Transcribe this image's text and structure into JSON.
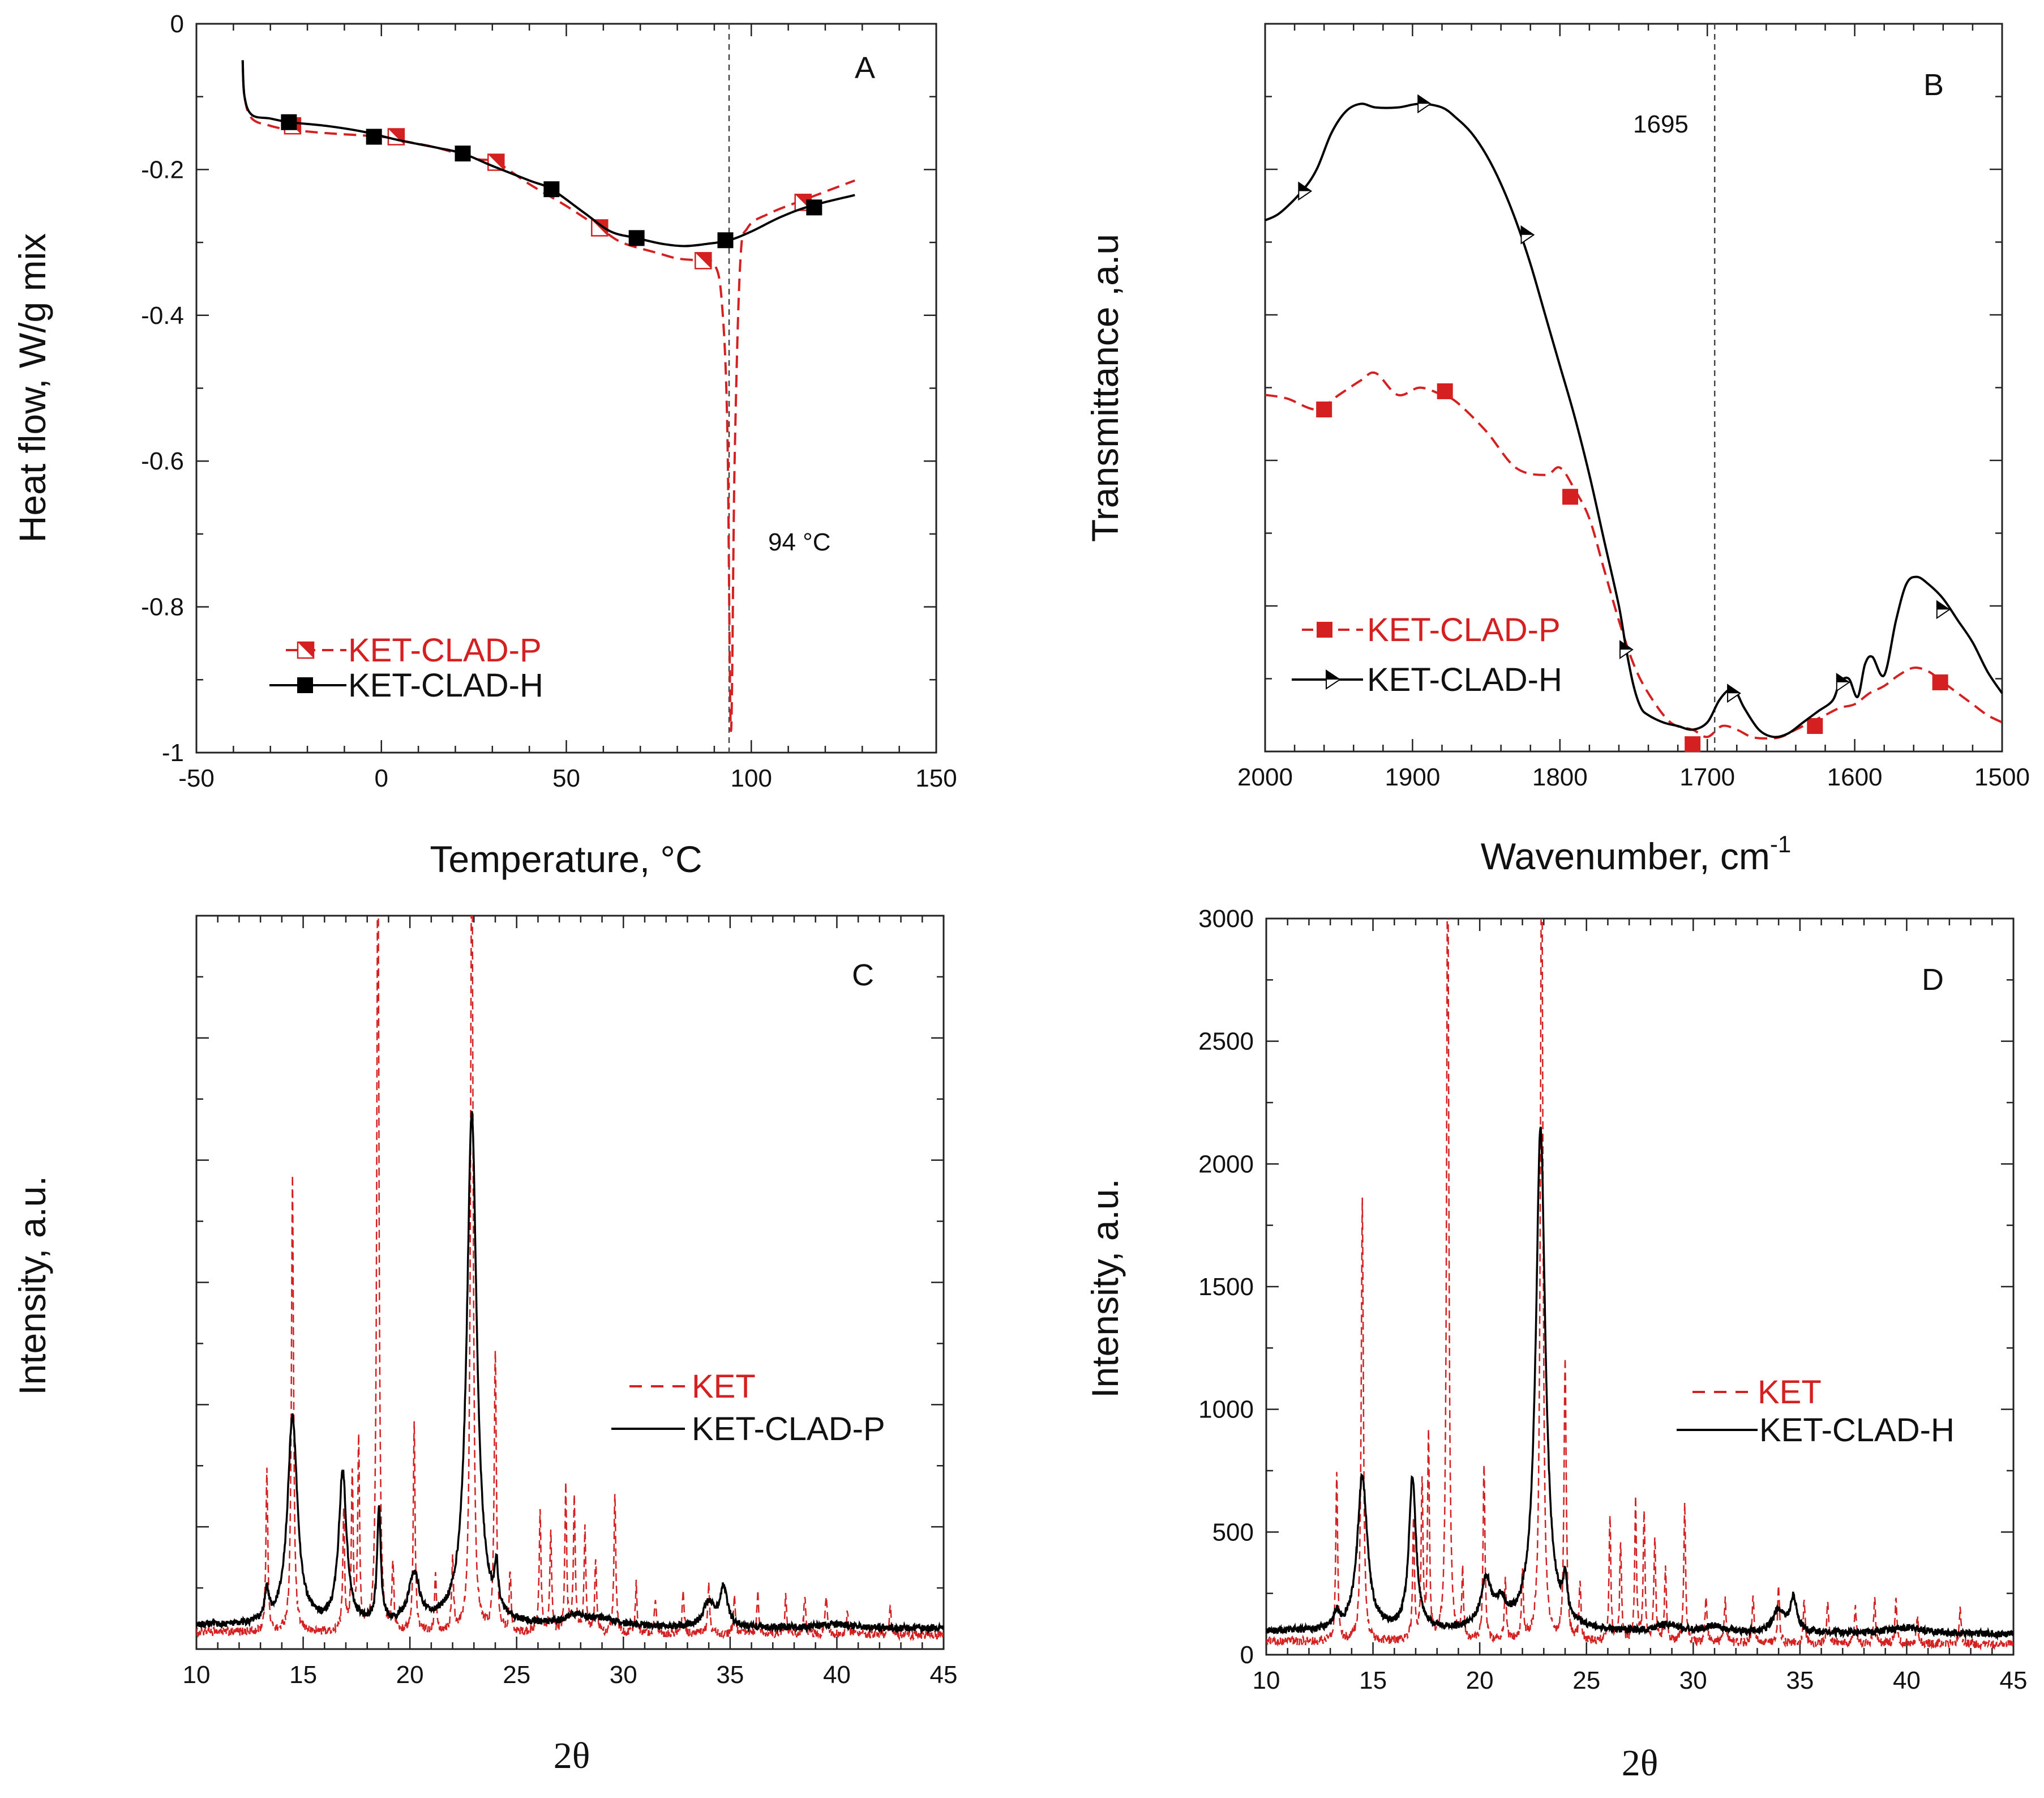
{
  "colors": {
    "red": "#d42020",
    "black": "#000000"
  },
  "chart_data": [
    {
      "panel": "A",
      "type": "line",
      "title": "",
      "xlabel": "Temperature, °C",
      "ylabel": "Heat flow,  W/g mix",
      "xlim": [
        -50,
        150
      ],
      "ylim": [
        -1,
        0
      ],
      "xticks": [
        -50,
        0,
        50,
        100,
        150
      ],
      "yticks": [
        -1,
        -0.8,
        -0.6,
        -0.4,
        -0.2,
        0
      ],
      "xtick_labels": [
        "-50",
        "0",
        "50",
        "100",
        "150"
      ],
      "ytick_labels": [
        "-1",
        "-0.8",
        "-0.6",
        "-0.4",
        "-0.2",
        "0"
      ],
      "vline": 94,
      "annotation": "94 °C",
      "series": [
        {
          "name": "KET-CLAD-P",
          "color": "red",
          "dash": true,
          "marker": "halftri",
          "x": [
            -37.5,
            -37,
            -35,
            -30,
            -25,
            -15,
            0,
            5,
            15,
            25,
            31,
            40,
            50,
            59,
            65,
            75,
            80,
            86,
            90,
            92,
            93.5,
            94.5,
            95.5,
            97,
            99,
            105,
            115,
            128
          ],
          "y": [
            -0.05,
            -0.1,
            -0.13,
            -0.14,
            -0.145,
            -0.15,
            -0.155,
            -0.16,
            -0.17,
            -0.185,
            -0.19,
            -0.22,
            -0.25,
            -0.28,
            -0.3,
            -0.315,
            -0.322,
            -0.325,
            -0.33,
            -0.38,
            -0.55,
            -0.97,
            -0.6,
            -0.33,
            -0.28,
            -0.26,
            -0.24,
            -0.215
          ],
          "markers_x": [
            -24,
            4,
            31,
            59,
            87,
            114
          ],
          "markers_y": [
            -0.14,
            -0.155,
            -0.19,
            -0.28,
            -0.325,
            -0.245
          ]
        },
        {
          "name": "KET-CLAD-H",
          "color": "black",
          "dash": false,
          "marker": "square",
          "x": [
            -37.5,
            -37,
            -35,
            -30,
            -25,
            -15,
            -5,
            5,
            15,
            22,
            30,
            40,
            46,
            55,
            62,
            69,
            76,
            82,
            88,
            94,
            100,
            108,
            116,
            128
          ],
          "y": [
            -0.05,
            -0.1,
            -0.125,
            -0.13,
            -0.135,
            -0.14,
            -0.148,
            -0.16,
            -0.17,
            -0.178,
            -0.195,
            -0.215,
            -0.227,
            -0.26,
            -0.285,
            -0.294,
            -0.302,
            -0.305,
            -0.302,
            -0.297,
            -0.285,
            -0.265,
            -0.25,
            -0.235
          ],
          "markers_x": [
            -25,
            -2,
            22,
            46,
            69,
            93,
            117
          ],
          "markers_y": [
            -0.135,
            -0.155,
            -0.178,
            -0.227,
            -0.294,
            -0.297,
            -0.252
          ]
        }
      ]
    },
    {
      "panel": "B",
      "type": "line",
      "title": "",
      "xlabel": "Wavenumber, cm",
      "xlabel_sup": "-1",
      "ylabel": "Transmittance ,a.u",
      "xlim": [
        2000,
        1500
      ],
      "ylim": [
        0,
        100
      ],
      "xticks": [
        2000,
        1900,
        1800,
        1700,
        1600,
        1500
      ],
      "xtick_labels": [
        "2000",
        "1900",
        "1800",
        "1700",
        "1600",
        "1500"
      ],
      "yticks_unlabeled": true,
      "vline": 1695,
      "annotation": "1695",
      "series": [
        {
          "name": "KET-CLAD-P",
          "color": "red",
          "dash": true,
          "marker": "square",
          "x": [
            2000,
            1985,
            1965,
            1950,
            1935,
            1925,
            1910,
            1895,
            1880,
            1870,
            1850,
            1830,
            1810,
            1800,
            1790,
            1780,
            1770,
            1760,
            1750,
            1740,
            1725,
            1710,
            1700,
            1690,
            1680,
            1670,
            1660,
            1650,
            1640,
            1630,
            1620,
            1610,
            1600,
            1590,
            1580,
            1570,
            1560,
            1550,
            1540,
            1530,
            1520,
            1510,
            1500
          ],
          "y": [
            49,
            48.5,
            47,
            49,
            51,
            52,
            49,
            50,
            49,
            48,
            44,
            39,
            38,
            39,
            36,
            32,
            25,
            18,
            12,
            8,
            4,
            3,
            2,
            3.5,
            3,
            2,
            1.8,
            2,
            3,
            4,
            5,
            6,
            6.5,
            8,
            9,
            10.5,
            11.5,
            11,
            9.5,
            8,
            6.5,
            5,
            4
          ],
          "markers_x": [
            1960,
            1878,
            1793,
            1710,
            1627,
            1542
          ],
          "markers_y": [
            47,
            49.5,
            35,
            1,
            3.5,
            9.5
          ]
        },
        {
          "name": "KET-CLAD-H",
          "color": "black",
          "dash": false,
          "marker": "halftri",
          "x": [
            2000,
            1990,
            1975,
            1965,
            1955,
            1945,
            1935,
            1925,
            1910,
            1895,
            1880,
            1870,
            1860,
            1850,
            1840,
            1830,
            1820,
            1810,
            1800,
            1790,
            1780,
            1770,
            1760,
            1755,
            1750,
            1745,
            1740,
            1730,
            1720,
            1710,
            1700,
            1692,
            1685,
            1680,
            1675,
            1665,
            1655,
            1645,
            1635,
            1625,
            1615,
            1610,
            1604,
            1598,
            1593,
            1588,
            1580,
            1572,
            1565,
            1558,
            1550,
            1540,
            1530,
            1520,
            1510,
            1500
          ],
          "y": [
            73,
            74,
            77,
            80,
            85,
            88,
            89,
            88.5,
            88.5,
            89,
            88.5,
            87,
            85,
            82,
            78,
            73,
            67,
            60,
            53,
            46,
            38,
            29,
            20,
            14,
            9,
            6,
            5,
            4,
            3.5,
            3,
            4,
            7,
            8.5,
            8,
            6,
            3,
            2,
            2.5,
            4,
            5.5,
            7,
            9.5,
            10,
            7.5,
            12,
            13,
            10.5,
            18,
            23,
            24,
            23,
            21,
            18,
            15,
            11,
            8
          ],
          "markers_x": [
            1973,
            1892,
            1822,
            1755,
            1682,
            1608,
            1540
          ],
          "markers_y": [
            77,
            89,
            71,
            14,
            8,
            9.5,
            19.5
          ]
        }
      ]
    },
    {
      "panel": "C",
      "type": "line",
      "title": "",
      "xlabel": "2θ",
      "ylabel": "Intensity, a.u.",
      "xlim": [
        10,
        45
      ],
      "ylim": [
        0,
        3000
      ],
      "xticks": [
        10,
        15,
        20,
        25,
        30,
        35,
        40,
        45
      ],
      "xtick_labels": [
        "10",
        "15",
        "20",
        "25",
        "30",
        "35",
        "40",
        "45"
      ],
      "yticks_unlabeled": true,
      "series": [
        {
          "name": "KET",
          "color": "red",
          "dash": true,
          "baseline": 70,
          "noise": 18,
          "peaks": [
            [
              13.3,
              680,
              0.05
            ],
            [
              14.5,
              1850,
              0.06
            ],
            [
              16.9,
              500,
              0.05
            ],
            [
              17.3,
              650,
              0.05
            ],
            [
              17.6,
              780,
              0.05
            ],
            [
              18.5,
              3400,
              0.06
            ],
            [
              19.2,
              280,
              0.05
            ],
            [
              20.2,
              850,
              0.05
            ],
            [
              21.2,
              250,
              0.05
            ],
            [
              22.0,
              300,
              0.05
            ],
            [
              22.9,
              3400,
              0.07
            ],
            [
              24.0,
              1150,
              0.06
            ],
            [
              24.7,
              250,
              0.05
            ],
            [
              26.1,
              500,
              0.05
            ],
            [
              26.6,
              400,
              0.05
            ],
            [
              27.3,
              600,
              0.05
            ],
            [
              27.7,
              550,
              0.05
            ],
            [
              28.2,
              420,
              0.05
            ],
            [
              28.7,
              300,
              0.05
            ],
            [
              29.6,
              570,
              0.05
            ],
            [
              30.6,
              200,
              0.05
            ],
            [
              31.5,
              150,
              0.05
            ],
            [
              32.8,
              180,
              0.05
            ],
            [
              34.0,
              200,
              0.05
            ],
            [
              35.2,
              150,
              0.05
            ],
            [
              36.3,
              170,
              0.05
            ],
            [
              37.6,
              150,
              0.05
            ],
            [
              38.5,
              160,
              0.05
            ],
            [
              39.5,
              170,
              0.05
            ],
            [
              40.5,
              100,
              0.05
            ],
            [
              42.5,
              130,
              0.05
            ]
          ]
        },
        {
          "name": "KET-CLAD-P",
          "color": "black",
          "dash": false,
          "baseline": 95,
          "noise": 14,
          "peaks": [
            [
              13.3,
              120,
              0.12
            ],
            [
              14.5,
              850,
              0.28
            ],
            [
              16.85,
              620,
              0.22
            ],
            [
              18.55,
              470,
              0.1
            ],
            [
              20.2,
              200,
              0.3
            ],
            [
              22.9,
              2100,
              0.28
            ],
            [
              24.05,
              170,
              0.1
            ],
            [
              27.7,
              40,
              0.6
            ],
            [
              29.0,
              30,
              0.8
            ],
            [
              34.0,
              100,
              0.3
            ],
            [
              34.7,
              160,
              0.2
            ],
            [
              40.0,
              15,
              1.0
            ]
          ]
        }
      ]
    },
    {
      "panel": "D",
      "type": "line",
      "title": "",
      "xlabel": "2θ",
      "ylabel": "Intensity, a.u.",
      "xlim": [
        10,
        45
      ],
      "ylim": [
        0,
        3000
      ],
      "xticks": [
        10,
        15,
        20,
        25,
        30,
        35,
        40,
        45
      ],
      "yticks": [
        0,
        500,
        1000,
        1500,
        2000,
        2500,
        3000
      ],
      "xtick_labels": [
        "10",
        "15",
        "20",
        "25",
        "30",
        "35",
        "40",
        "45"
      ],
      "ytick_labels": [
        "0",
        "500",
        "1000",
        "1500",
        "2000",
        "2500",
        "3000"
      ],
      "series": [
        {
          "name": "KET",
          "color": "red",
          "dash": true,
          "baseline": 55,
          "noise": 18,
          "peaks": [
            [
              13.3,
              700,
              0.05
            ],
            [
              14.5,
              1800,
              0.06
            ],
            [
              16.9,
              500,
              0.05
            ],
            [
              17.3,
              650,
              0.05
            ],
            [
              17.6,
              830,
              0.05
            ],
            [
              18.5,
              3400,
              0.06
            ],
            [
              19.2,
              270,
              0.05
            ],
            [
              20.2,
              730,
              0.05
            ],
            [
              21.2,
              250,
              0.05
            ],
            [
              22.0,
              280,
              0.05
            ],
            [
              22.9,
              3400,
              0.07
            ],
            [
              24.0,
              1150,
              0.06
            ],
            [
              24.7,
              240,
              0.05
            ],
            [
              26.1,
              500,
              0.05
            ],
            [
              26.6,
              400,
              0.05
            ],
            [
              27.3,
              570,
              0.05
            ],
            [
              27.7,
              530,
              0.05
            ],
            [
              28.2,
              420,
              0.05
            ],
            [
              28.7,
              300,
              0.05
            ],
            [
              29.6,
              560,
              0.05
            ],
            [
              30.6,
              200,
              0.05
            ],
            [
              31.5,
              170,
              0.05
            ],
            [
              32.8,
              200,
              0.05
            ],
            [
              34.0,
              230,
              0.05
            ],
            [
              35.2,
              170,
              0.05
            ],
            [
              36.3,
              180,
              0.05
            ],
            [
              37.6,
              150,
              0.05
            ],
            [
              38.5,
              180,
              0.05
            ],
            [
              39.5,
              190,
              0.05
            ],
            [
              40.5,
              110,
              0.05
            ],
            [
              42.5,
              150,
              0.05
            ]
          ]
        },
        {
          "name": "KET-CLAD-H",
          "color": "black",
          "dash": false,
          "baseline": 95,
          "noise": 14,
          "peaks": [
            [
              13.3,
              60,
              0.15
            ],
            [
              14.5,
              630,
              0.28
            ],
            [
              16.85,
              620,
              0.2
            ],
            [
              20.3,
              190,
              0.3
            ],
            [
              21.0,
              90,
              0.3
            ],
            [
              22.85,
              2050,
              0.27
            ],
            [
              24.0,
              150,
              0.12
            ],
            [
              28.8,
              30,
              0.6
            ],
            [
              31.0,
              25,
              0.6
            ],
            [
              34.0,
              90,
              0.3
            ],
            [
              34.7,
              140,
              0.2
            ],
            [
              40.0,
              25,
              1.0
            ]
          ]
        }
      ]
    }
  ]
}
